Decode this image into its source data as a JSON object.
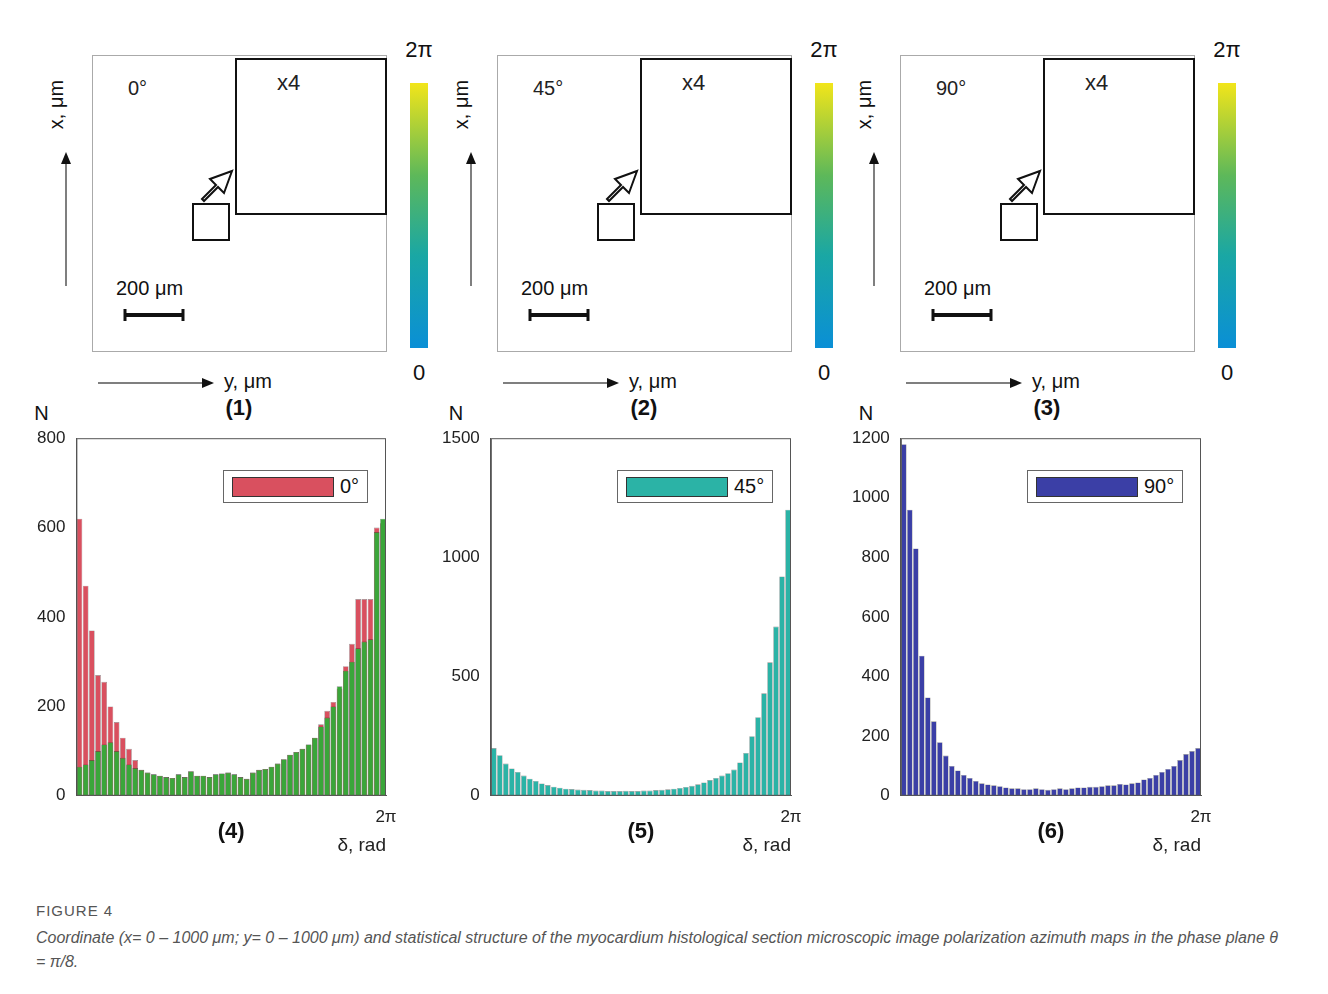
{
  "maps": [
    {
      "label": "(1)",
      "angle": "0°",
      "inset": "x4",
      "scale_bar": "200 μm",
      "x_axis": "y, μm",
      "y_axis": "x, μm",
      "colorbar": {
        "range": [
          0,
          6.2832
        ],
        "ticks": [
          0,
          {
            "value": 6.2832,
            "label": "2π"
          }
        ]
      }
    },
    {
      "label": "(2)",
      "angle": "45°",
      "inset": "x4",
      "scale_bar": "200 μm",
      "x_axis": "y, μm",
      "y_axis": "x, μm",
      "colorbar": {
        "range": [
          0,
          6.2832
        ],
        "ticks": [
          0,
          {
            "value": 6.2832,
            "label": "2π"
          }
        ]
      }
    },
    {
      "label": "(3)",
      "angle": "90°",
      "inset": "x4",
      "scale_bar": "200 μm",
      "x_axis": "y, μm",
      "y_axis": "x, μm",
      "colorbar": {
        "range": [
          0,
          6.2832
        ],
        "ticks": [
          0,
          {
            "value": 6.2832,
            "label": "2π"
          }
        ]
      }
    }
  ],
  "chart_data": [
    {
      "type": "bar",
      "label": "(4)",
      "y_label": "N",
      "x_label": "δ, rad",
      "bins": [
        0,
        0.1257,
        0.2513,
        0.377,
        0.5027,
        0.6283,
        0.754,
        0.8796,
        1.0053,
        1.131,
        1.2566,
        1.3823,
        1.508,
        1.6336,
        1.7593,
        1.885,
        2.0106,
        2.1363,
        2.2619,
        2.3876,
        2.5133,
        2.6389,
        2.7646,
        2.8903,
        3.0159,
        3.1416,
        3.2673,
        3.3929,
        3.5186,
        3.6442,
        3.7699,
        3.8956,
        4.0212,
        4.1469,
        4.2726,
        4.3982,
        4.5239,
        4.6496,
        4.7752,
        4.9009,
        5.0265,
        5.1522,
        5.2779,
        5.4035,
        5.5292,
        5.6549,
        5.7805,
        5.9062,
        6.0319,
        6.1575,
        6.2832
      ],
      "series": [
        {
          "color": "#3aa63a",
          "values": [
            65,
            70,
            80,
            100,
            115,
            120,
            100,
            85,
            70,
            62,
            58,
            52,
            48,
            45,
            42,
            40,
            48,
            42,
            55,
            45,
            45,
            42,
            48,
            50,
            52,
            48,
            42,
            38,
            52,
            58,
            60,
            65,
            72,
            82,
            92,
            98,
            105,
            115,
            130,
            155,
            175,
            200,
            245,
            280,
            300,
            330,
            345,
            350,
            590,
            620
          ]
        },
        {
          "name": "0°",
          "color": "#d9505f",
          "values": [
            620,
            470,
            370,
            270,
            255,
            200,
            165,
            130,
            105,
            80,
            58,
            52,
            48,
            45,
            42,
            40,
            48,
            42,
            55,
            45,
            45,
            42,
            48,
            50,
            52,
            48,
            42,
            38,
            52,
            58,
            60,
            65,
            72,
            82,
            92,
            98,
            105,
            115,
            130,
            160,
            190,
            210,
            240,
            290,
            340,
            440,
            440,
            440,
            600,
            610
          ]
        }
      ],
      "xlim": [
        0,
        6.2832
      ],
      "xticks": [
        {
          "value": 6.2832,
          "label": "2π"
        }
      ],
      "ylim": [
        0,
        800
      ],
      "yticks": [
        0,
        200,
        400,
        600,
        800
      ],
      "legend": "upper right"
    },
    {
      "type": "bar",
      "label": "(5)",
      "y_label": "N",
      "x_label": "δ, rad",
      "bins": [
        0,
        0.1257,
        0.2513,
        0.377,
        0.5027,
        0.6283,
        0.754,
        0.8796,
        1.0053,
        1.131,
        1.2566,
        1.3823,
        1.508,
        1.6336,
        1.7593,
        1.885,
        2.0106,
        2.1363,
        2.2619,
        2.3876,
        2.5133,
        2.6389,
        2.7646,
        2.8903,
        3.0159,
        3.1416,
        3.2673,
        3.3929,
        3.5186,
        3.6442,
        3.7699,
        3.8956,
        4.0212,
        4.1469,
        4.2726,
        4.3982,
        4.5239,
        4.6496,
        4.7752,
        4.9009,
        5.0265,
        5.1522,
        5.2779,
        5.4035,
        5.5292,
        5.6549,
        5.7805,
        5.9062,
        6.0319,
        6.1575,
        6.2832
      ],
      "series": [
        {
          "name": "45°",
          "color": "#2bb3a6",
          "values": [
            200,
            170,
            135,
            115,
            100,
            85,
            72,
            62,
            52,
            45,
            38,
            34,
            30,
            28,
            26,
            25,
            24,
            22,
            22,
            20,
            20,
            20,
            21,
            20,
            20,
            22,
            22,
            24,
            25,
            27,
            30,
            33,
            37,
            42,
            48,
            56,
            66,
            75,
            85,
            95,
            110,
            140,
            180,
            250,
            330,
            430,
            560,
            710,
            920,
            1200
          ]
        }
      ],
      "xlim": [
        0,
        6.2832
      ],
      "xticks": [
        {
          "value": 6.2832,
          "label": "2π"
        }
      ],
      "ylim": [
        0,
        1500
      ],
      "yticks": [
        0,
        500,
        1000,
        1500
      ],
      "legend": "upper right"
    },
    {
      "type": "bar",
      "label": "(6)",
      "y_label": "N",
      "x_label": "δ, rad",
      "bins": [
        0,
        0.1257,
        0.2513,
        0.377,
        0.5027,
        0.6283,
        0.754,
        0.8796,
        1.0053,
        1.131,
        1.2566,
        1.3823,
        1.508,
        1.6336,
        1.7593,
        1.885,
        2.0106,
        2.1363,
        2.2619,
        2.3876,
        2.5133,
        2.6389,
        2.7646,
        2.8903,
        3.0159,
        3.1416,
        3.2673,
        3.3929,
        3.5186,
        3.6442,
        3.7699,
        3.8956,
        4.0212,
        4.1469,
        4.2726,
        4.3982,
        4.5239,
        4.6496,
        4.7752,
        4.9009,
        5.0265,
        5.1522,
        5.2779,
        5.4035,
        5.5292,
        5.6549,
        5.7805,
        5.9062,
        6.0319,
        6.1575,
        6.2832
      ],
      "series": [
        {
          "name": "90°",
          "color": "#3b3fa6",
          "values": [
            1180,
            960,
            830,
            470,
            330,
            250,
            180,
            135,
            100,
            85,
            70,
            60,
            50,
            42,
            38,
            35,
            32,
            28,
            25,
            25,
            22,
            22,
            25,
            22,
            20,
            22,
            25,
            22,
            25,
            28,
            28,
            30,
            30,
            32,
            35,
            35,
            40,
            38,
            42,
            45,
            55,
            60,
            70,
            80,
            90,
            100,
            120,
            140,
            150,
            160
          ]
        }
      ],
      "xlim": [
        0,
        6.2832
      ],
      "xticks": [
        {
          "value": 6.2832,
          "label": "2π"
        }
      ],
      "ylim": [
        0,
        1200
      ],
      "yticks": [
        0,
        200,
        400,
        600,
        800,
        1000,
        1200
      ],
      "legend": "upper right"
    }
  ],
  "caption": {
    "title": "FIGURE 4",
    "text": "Coordinate (x= 0 – 1000 μm; y= 0 – 1000 μm) and statistical structure of the myocardium histological section microscopic image polarization azimuth maps in the phase plane θ = π/8."
  }
}
